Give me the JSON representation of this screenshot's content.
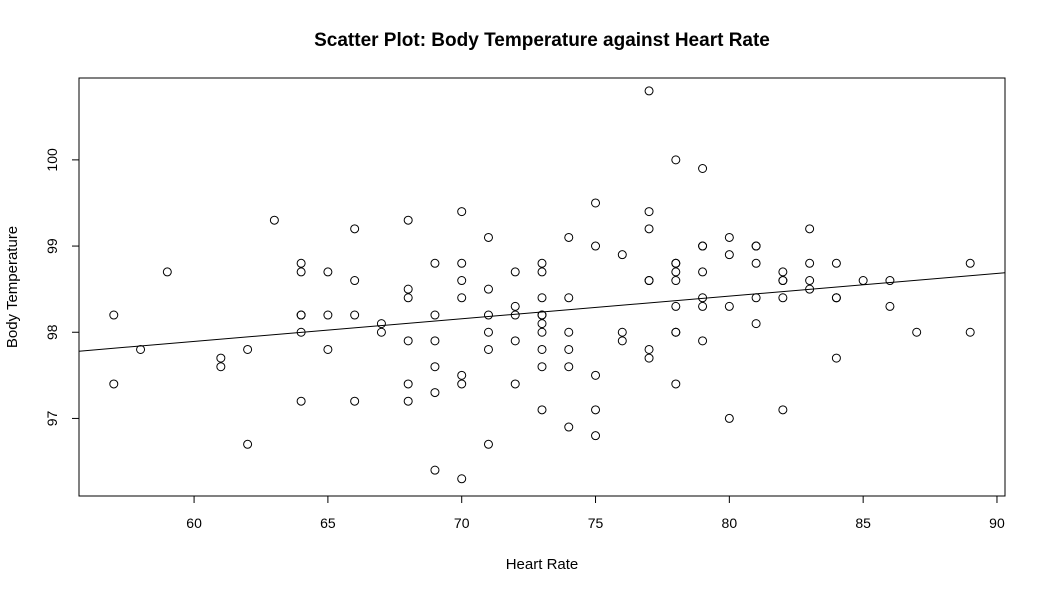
{
  "chart_data": {
    "type": "scatter",
    "title": "Scatter Plot: Body Temperature against Heart Rate",
    "xlabel": "Heart Rate",
    "ylabel": "Body Temperature",
    "xlim": [
      55.7,
      90.3
    ],
    "ylim": [
      96.1,
      100.95
    ],
    "x_ticks": [
      60,
      65,
      70,
      75,
      80,
      85,
      90
    ],
    "y_ticks": [
      97,
      98,
      99,
      100
    ],
    "x_tick_labels": [
      "60",
      "65",
      "70",
      "75",
      "80",
      "85",
      "90"
    ],
    "y_tick_labels": [
      "97",
      "98",
      "99",
      "100"
    ],
    "grid": false,
    "legend": "none",
    "regression_line": {
      "x": [
        55.7,
        90.3
      ],
      "y": [
        97.78,
        98.69
      ]
    },
    "points": [
      [
        57,
        98.2
      ],
      [
        57,
        97.4
      ],
      [
        58,
        97.8
      ],
      [
        59,
        98.7
      ],
      [
        61,
        97.7
      ],
      [
        61,
        97.6
      ],
      [
        62,
        97.8
      ],
      [
        62,
        96.7
      ],
      [
        63,
        99.3
      ],
      [
        64,
        98.8
      ],
      [
        64,
        98.7
      ],
      [
        64,
        98.2
      ],
      [
        64,
        98.2
      ],
      [
        64,
        98.0
      ],
      [
        64,
        97.2
      ],
      [
        65,
        98.7
      ],
      [
        65,
        98.2
      ],
      [
        65,
        97.8
      ],
      [
        66,
        99.2
      ],
      [
        66,
        98.6
      ],
      [
        66,
        98.2
      ],
      [
        66,
        97.2
      ],
      [
        67,
        98.1
      ],
      [
        67,
        98.0
      ],
      [
        68,
        99.3
      ],
      [
        68,
        98.5
      ],
      [
        68,
        98.4
      ],
      [
        68,
        97.9
      ],
      [
        68,
        97.4
      ],
      [
        68,
        97.2
      ],
      [
        69,
        98.8
      ],
      [
        69,
        98.2
      ],
      [
        69,
        97.9
      ],
      [
        69,
        97.6
      ],
      [
        69,
        97.3
      ],
      [
        69,
        96.4
      ],
      [
        70,
        99.4
      ],
      [
        70,
        98.8
      ],
      [
        70,
        98.6
      ],
      [
        70,
        98.4
      ],
      [
        70,
        97.5
      ],
      [
        70,
        97.4
      ],
      [
        70,
        96.3
      ],
      [
        71,
        99.1
      ],
      [
        71,
        98.5
      ],
      [
        71,
        98.2
      ],
      [
        71,
        98.0
      ],
      [
        71,
        97.8
      ],
      [
        71,
        96.7
      ],
      [
        72,
        98.7
      ],
      [
        72,
        98.3
      ],
      [
        72,
        98.2
      ],
      [
        72,
        97.9
      ],
      [
        72,
        97.4
      ],
      [
        73,
        98.8
      ],
      [
        73,
        98.7
      ],
      [
        73,
        98.4
      ],
      [
        73,
        98.2
      ],
      [
        73,
        98.2
      ],
      [
        73,
        98.1
      ],
      [
        73,
        98.0
      ],
      [
        73,
        97.8
      ],
      [
        73,
        97.6
      ],
      [
        73,
        97.1
      ],
      [
        74,
        99.1
      ],
      [
        74,
        98.4
      ],
      [
        74,
        98.0
      ],
      [
        74,
        97.8
      ],
      [
        74,
        97.6
      ],
      [
        74,
        96.9
      ],
      [
        75,
        99.5
      ],
      [
        75,
        99.0
      ],
      [
        75,
        97.5
      ],
      [
        75,
        97.1
      ],
      [
        75,
        96.8
      ],
      [
        76,
        98.9
      ],
      [
        76,
        98.0
      ],
      [
        76,
        97.9
      ],
      [
        77,
        100.8
      ],
      [
        77,
        99.4
      ],
      [
        77,
        99.2
      ],
      [
        77,
        98.6
      ],
      [
        77,
        98.6
      ],
      [
        77,
        97.8
      ],
      [
        77,
        97.7
      ],
      [
        78,
        100.0
      ],
      [
        78,
        98.8
      ],
      [
        78,
        98.8
      ],
      [
        78,
        98.7
      ],
      [
        78,
        98.6
      ],
      [
        78,
        98.3
      ],
      [
        78,
        98.0
      ],
      [
        78,
        98.0
      ],
      [
        78,
        97.4
      ],
      [
        79,
        99.9
      ],
      [
        79,
        99.0
      ],
      [
        79,
        99.0
      ],
      [
        79,
        98.7
      ],
      [
        79,
        98.4
      ],
      [
        79,
        98.3
      ],
      [
        79,
        97.9
      ],
      [
        80,
        99.1
      ],
      [
        80,
        98.9
      ],
      [
        80,
        98.3
      ],
      [
        80,
        97.0
      ],
      [
        81,
        99.0
      ],
      [
        81,
        99.0
      ],
      [
        81,
        98.8
      ],
      [
        81,
        98.4
      ],
      [
        81,
        98.1
      ],
      [
        82,
        98.7
      ],
      [
        82,
        98.6
      ],
      [
        82,
        98.6
      ],
      [
        82,
        98.4
      ],
      [
        82,
        97.1
      ],
      [
        83,
        99.2
      ],
      [
        83,
        98.8
      ],
      [
        83,
        98.6
      ],
      [
        83,
        98.5
      ],
      [
        84,
        98.8
      ],
      [
        84,
        98.4
      ],
      [
        84,
        98.4
      ],
      [
        84,
        97.7
      ],
      [
        85,
        98.6
      ],
      [
        86,
        98.6
      ],
      [
        86,
        98.3
      ],
      [
        87,
        98.0
      ],
      [
        89,
        98.8
      ],
      [
        89,
        98.0
      ]
    ]
  }
}
